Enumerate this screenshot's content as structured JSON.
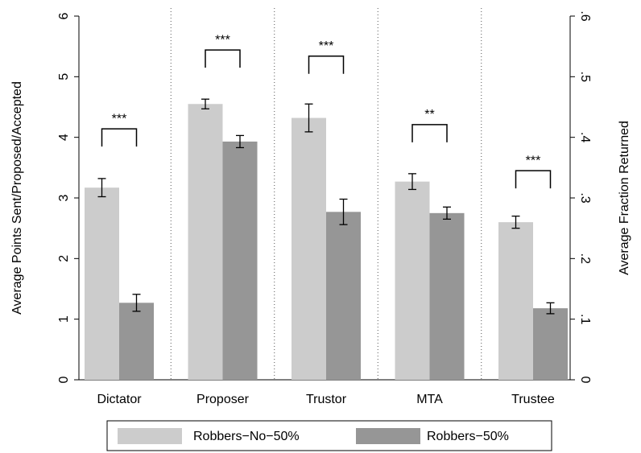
{
  "chart_data": {
    "type": "bar",
    "y_label": "Average Points Sent/Proposed/Accepted",
    "y2_label": "Average Fraction Returned",
    "categories": [
      "Dictator",
      "Proposer",
      "Trustor",
      "MTA",
      "Trustee"
    ],
    "series": [
      {
        "name": "Robbers−No−50%",
        "color": "#cccccc",
        "values": [
          3.17,
          4.55,
          4.32,
          3.27,
          2.6
        ],
        "errors": [
          0.15,
          0.08,
          0.23,
          0.13,
          0.1
        ]
      },
      {
        "name": "Robbers−50%",
        "color": "#969696",
        "values": [
          1.27,
          3.93,
          2.77,
          2.75,
          1.18
        ],
        "errors": [
          0.14,
          0.1,
          0.21,
          0.1,
          0.09
        ]
      }
    ],
    "annotations": [
      {
        "text": "***",
        "y": 4.14
      },
      {
        "text": "***",
        "y": 5.44
      },
      {
        "text": "***",
        "y": 5.34
      },
      {
        "text": "**",
        "y": 4.21
      },
      {
        "text": "***",
        "y": 3.45
      }
    ],
    "ylim": [
      0,
      6
    ],
    "yticks": [
      0,
      1,
      2,
      3,
      4,
      5,
      6
    ],
    "y2lim": [
      0,
      0.6
    ],
    "y2ticks": [
      0,
      {
        "value": 0.1,
        "label": ".1"
      },
      {
        "value": 0.2,
        "label": ".2"
      },
      {
        "value": 0.3,
        "label": ".3"
      },
      {
        "value": 0.4,
        "label": ".4"
      },
      {
        "value": 0.5,
        "label": ".5"
      },
      {
        "value": 0.6,
        "label": ".6"
      }
    ],
    "grid": false
  }
}
